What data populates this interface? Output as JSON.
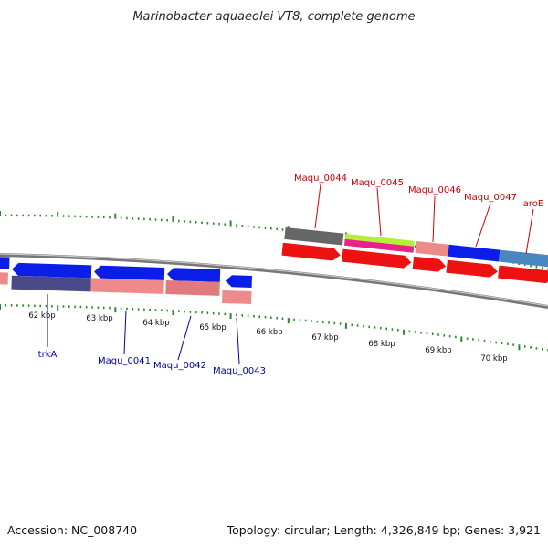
{
  "title": "Marinobacter aquaeolei VT8, complete genome",
  "footer": {
    "accession": "Accession: NC_008740",
    "summary": "Topology: circular; Length: 4,326,849 bp; Genes: 3,921"
  },
  "colors": {
    "forward_label": "#cc0000",
    "reverse_label": "#0000aa",
    "tick": "#2a8a2a",
    "backbone": "#777777"
  },
  "kbp_markers": [
    {
      "label": "62 kbp"
    },
    {
      "label": "63 kbp"
    },
    {
      "label": "64 kbp"
    },
    {
      "label": "65 kbp"
    },
    {
      "label": "66 kbp"
    },
    {
      "label": "67 kbp"
    },
    {
      "label": "68 kbp"
    },
    {
      "label": "69 kbp"
    },
    {
      "label": "70 kbp"
    }
  ],
  "forward_genes": [
    {
      "name": "Maqu_0044"
    },
    {
      "name": "Maqu_0045"
    },
    {
      "name": "Maqu_0046"
    },
    {
      "name": "Maqu_0047"
    },
    {
      "name": "aroE"
    }
  ],
  "reverse_genes": [
    {
      "name": "trkA"
    },
    {
      "name": "Maqu_0041"
    },
    {
      "name": "Maqu_0042"
    },
    {
      "name": "Maqu_0043"
    }
  ]
}
